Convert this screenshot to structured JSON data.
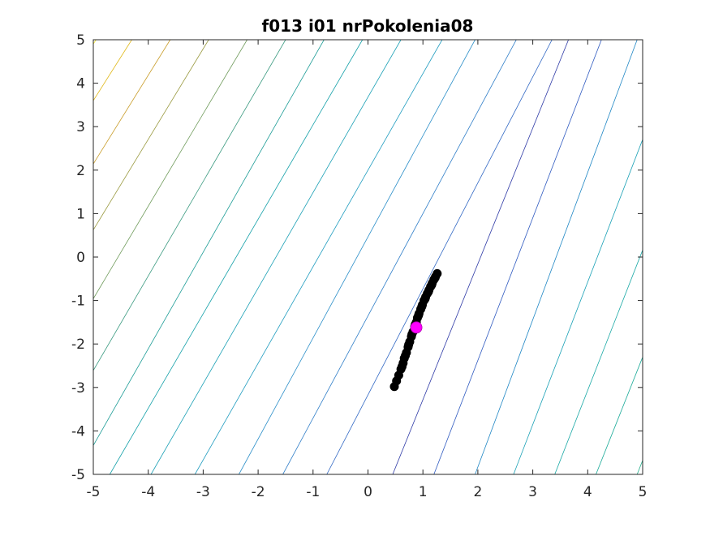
{
  "chart_data": {
    "type": "scatter",
    "title": "f013 i01 nrPokolenia08",
    "xlabel": "",
    "ylabel": "",
    "xlim": [
      -5,
      5
    ],
    "ylim": [
      -5,
      5
    ],
    "xticks": [
      -5,
      -4,
      -3,
      -2,
      -1,
      0,
      1,
      2,
      3,
      4,
      5
    ],
    "yticks": [
      -5,
      -4,
      -3,
      -2,
      -1,
      0,
      1,
      2,
      3,
      4,
      5
    ],
    "grid": false,
    "contours": {
      "description_units": "each contour is a straight line in data units from (x at y=-5) to (x at y=5)",
      "lines": [
        {
          "x_bottom": -10.1,
          "x_top": -4.95,
          "color": "#f0e020"
        },
        {
          "x_bottom": -9.3,
          "x_top": -4.3,
          "color": "#e0b818"
        },
        {
          "x_bottom": -8.5,
          "x_top": -3.6,
          "color": "#c89c28"
        },
        {
          "x_bottom": -7.7,
          "x_top": -2.9,
          "color": "#9a9a40"
        },
        {
          "x_bottom": -6.9,
          "x_top": -2.2,
          "color": "#6e9a5a"
        },
        {
          "x_bottom": -6.1,
          "x_top": -1.5,
          "color": "#3a9a80"
        },
        {
          "x_bottom": -5.3,
          "x_top": -0.8,
          "color": "#1c9c96"
        },
        {
          "x_bottom": -4.7,
          "x_top": -0.1,
          "color": "#13a0a8"
        },
        {
          "x_bottom": -3.95,
          "x_top": 0.6,
          "color": "#1aa0b5"
        },
        {
          "x_bottom": -3.15,
          "x_top": 1.35,
          "color": "#1f9cbf"
        },
        {
          "x_bottom": -2.35,
          "x_top": 1.95,
          "color": "#2a8ec8"
        },
        {
          "x_bottom": -1.55,
          "x_top": 2.7,
          "color": "#2f7ec8"
        },
        {
          "x_bottom": -0.75,
          "x_top": 3.35,
          "color": "#3168c4"
        },
        {
          "x_bottom": 0.45,
          "x_top": 3.65,
          "color": "#2e3aa6"
        },
        {
          "x_bottom": 1.2,
          "x_top": 4.25,
          "color": "#2f5ac0"
        },
        {
          "x_bottom": 1.95,
          "x_top": 4.9,
          "color": "#1e86c4"
        },
        {
          "x_bottom": 2.65,
          "x_top": 5.7,
          "color": "#18a0b5"
        },
        {
          "x_bottom": 3.4,
          "x_top": 6.5,
          "color": "#18a8a5"
        },
        {
          "x_bottom": 4.15,
          "x_top": 7.3,
          "color": "#1aaa98"
        },
        {
          "x_bottom": 4.9,
          "x_top": 8.0,
          "color": "#22ae8a"
        }
      ]
    },
    "series": [
      {
        "marker": "circle",
        "color": "#000000",
        "x": [
          0.48,
          0.52,
          0.56,
          0.6,
          0.64,
          0.66,
          0.7,
          0.73,
          0.76,
          0.79,
          0.82,
          0.85,
          0.88,
          0.9,
          0.93,
          0.96,
          0.99,
          1.02,
          1.05,
          1.08,
          1.11,
          1.14,
          1.17,
          1.2,
          1.23,
          1.26,
          0.62,
          0.68,
          0.74,
          0.8,
          0.86,
          0.92,
          0.98,
          1.04,
          1.1,
          1.16,
          1.22
        ],
        "y": [
          -2.98,
          -2.85,
          -2.72,
          -2.58,
          -2.44,
          -2.33,
          -2.2,
          -2.07,
          -1.95,
          -1.83,
          -1.72,
          -1.6,
          -1.5,
          -1.4,
          -1.3,
          -1.2,
          -1.1,
          -1.0,
          -0.92,
          -0.84,
          -0.76,
          -0.68,
          -0.6,
          -0.52,
          -0.45,
          -0.38,
          -2.52,
          -2.27,
          -2.02,
          -1.78,
          -1.55,
          -1.34,
          -1.14,
          -0.96,
          -0.8,
          -0.64,
          -0.48
        ]
      },
      {
        "marker": "circle",
        "color": "#ff00ff",
        "x": [
          0.88
        ],
        "y": [
          -1.62
        ]
      }
    ]
  }
}
